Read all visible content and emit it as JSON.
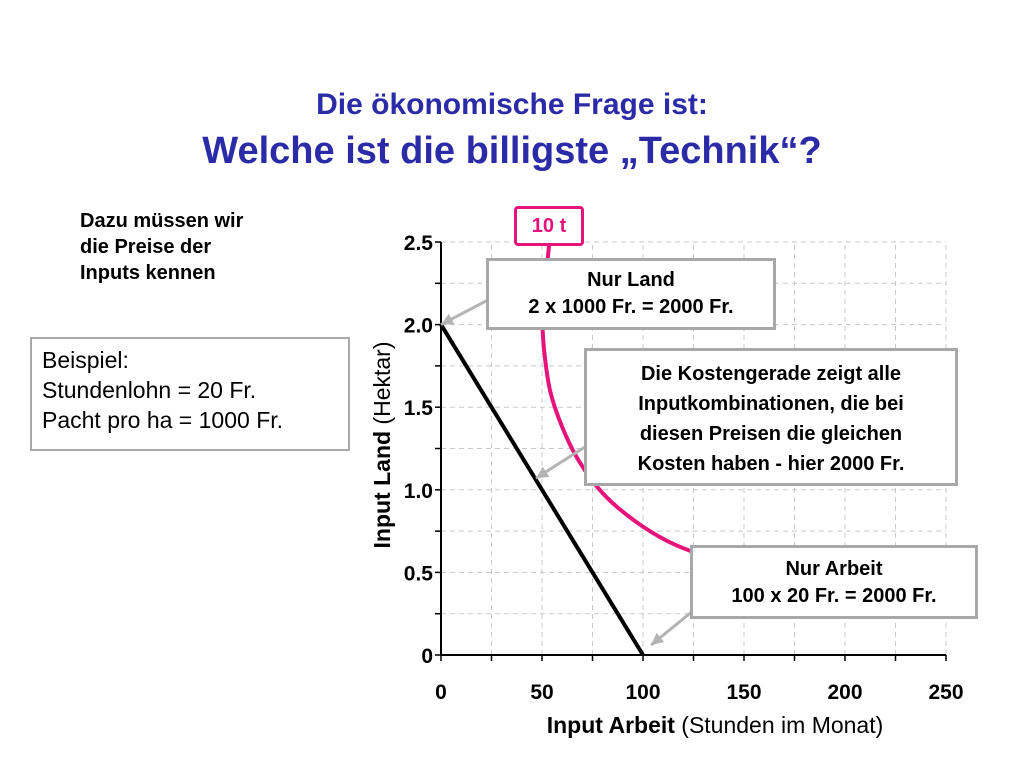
{
  "title": {
    "line1": "Die ökonomische Frage ist:",
    "line2": "Welche ist die billigste „Technik“?"
  },
  "note": {
    "lines": [
      "Dazu müssen wir",
      "die Preise der",
      "Inputs kennen"
    ]
  },
  "example": {
    "lines": [
      "Beispiel:",
      "Stundenlohn = 20 Fr.",
      "Pacht pro ha = 1000 Fr."
    ]
  },
  "callouts": {
    "land": [
      "Nur Land",
      "2 x 1000 Fr. = 2000 Fr."
    ],
    "cost_line": [
      "Die Kostengerade zeigt alle",
      "Inputkombinationen, die bei",
      "diesen Preisen die gleichen",
      "Kosten haben - hier 2000 Fr."
    ],
    "labor": [
      "Nur Arbeit",
      "100 x 20 Fr. = 2000 Fr."
    ]
  },
  "isoquant_label": "10 t",
  "colors": {
    "title": "#2b2ba8",
    "isoquant": "#e6137a",
    "cost_line": "#000000",
    "callout_border": "#a8a8a8"
  },
  "chart_data": {
    "type": "line",
    "xlabel": {
      "bold": "Input Arbeit",
      "rest": " (Stunden im Monat)"
    },
    "ylabel": {
      "bold": "Input Land",
      "rest": " (Hektar)"
    },
    "xlim": [
      0,
      250
    ],
    "ylim": [
      0,
      2.5
    ],
    "x_ticks": [
      "0",
      "50",
      "100",
      "150",
      "200",
      "250"
    ],
    "y_ticks": [
      "0",
      "0.5",
      "1.0",
      "1.5",
      "2.0",
      "2.5"
    ],
    "grid": true,
    "series": [
      {
        "kind": "cost_line",
        "x": [
          0,
          100
        ],
        "y": [
          2.0,
          0
        ]
      },
      {
        "kind": "isoquant",
        "x": [
          50,
          51,
          54,
          60,
          68,
          80,
          95,
          112,
          130,
          150
        ],
        "y": [
          2.05,
          1.85,
          1.6,
          1.38,
          1.18,
          0.98,
          0.82,
          0.69,
          0.6,
          0.52
        ]
      }
    ],
    "annotations": [
      {
        "text_ref": "land",
        "point": [
          0,
          2.0
        ]
      },
      {
        "text_ref": "cost_line",
        "point": [
          47,
          1.07
        ]
      },
      {
        "text_ref": "labor",
        "point": [
          104,
          0.06
        ]
      }
    ]
  }
}
